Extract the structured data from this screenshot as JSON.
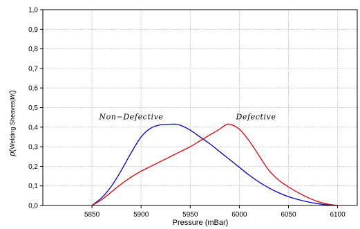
{
  "chart_data": {
    "type": "line",
    "title": "",
    "xlabel": "Pressure (mBar)",
    "ylabel": {
      "prefix": "p",
      "paren_open": "(",
      "text": "Welding Sheaves|",
      "symbol": "w",
      "sub": "i",
      "paren_close": ")"
    },
    "xlim": [
      5800,
      6120
    ],
    "ylim": [
      0,
      1
    ],
    "grid": true,
    "legend": "none",
    "x_ticks": [
      5850,
      5900,
      5950,
      6000,
      6050,
      6100
    ],
    "x_tick_labels": [
      "5850",
      "5900",
      "5950",
      "6000",
      "6050",
      "6100"
    ],
    "y_ticks": [
      0,
      0.1,
      0.2,
      0.3,
      0.4,
      0.5,
      0.6,
      0.7,
      0.8,
      0.9,
      1.0
    ],
    "y_tick_labels": [
      "0,0",
      "0,1",
      "0,2",
      "0,3",
      "0,4",
      "0,5",
      "0,6",
      "0,7",
      "0,8",
      "0,9",
      "1,0"
    ],
    "series": [
      {
        "color": "#0000cc",
        "x": [
          5850,
          5860,
          5870,
          5880,
          5890,
          5900,
          5910,
          5920,
          5930,
          5935,
          5940,
          5950,
          5960,
          5970,
          5980,
          5990,
          6000,
          6010,
          6020,
          6030,
          6040,
          6050,
          6060,
          6070,
          6080,
          6090,
          6100
        ],
        "y": [
          0.0,
          0.04,
          0.1,
          0.18,
          0.27,
          0.35,
          0.395,
          0.412,
          0.415,
          0.415,
          0.41,
          0.385,
          0.35,
          0.315,
          0.275,
          0.235,
          0.195,
          0.155,
          0.12,
          0.09,
          0.065,
          0.045,
          0.03,
          0.018,
          0.009,
          0.003,
          0.0
        ]
      },
      {
        "color": "#dd0000",
        "x": [
          5850,
          5860,
          5870,
          5880,
          5890,
          5900,
          5910,
          5920,
          5930,
          5940,
          5950,
          5960,
          5970,
          5980,
          5985,
          5990,
          6000,
          6010,
          6020,
          6030,
          6040,
          6050,
          6060,
          6070,
          6080,
          6090,
          6100
        ],
        "y": [
          0.0,
          0.03,
          0.07,
          0.11,
          0.145,
          0.175,
          0.2,
          0.225,
          0.25,
          0.275,
          0.3,
          0.33,
          0.36,
          0.39,
          0.408,
          0.415,
          0.39,
          0.33,
          0.255,
          0.18,
          0.13,
          0.095,
          0.065,
          0.04,
          0.02,
          0.007,
          0.0
        ]
      }
    ],
    "annotations": [
      {
        "text": "Non−Defective",
        "x": 5890,
        "y": 0.44
      },
      {
        "text": "Defective",
        "x": 6017,
        "y": 0.44
      }
    ]
  }
}
